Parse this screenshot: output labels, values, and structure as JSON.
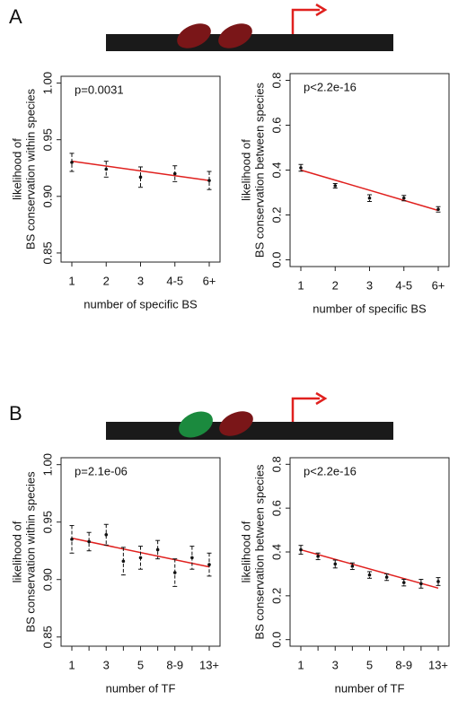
{
  "panels": [
    "A",
    "B"
  ],
  "chart_data": [
    {
      "type": "errorbar",
      "annotation": "p=0.0031",
      "y_label": [
        "likelihood of",
        "BS conservation within species"
      ],
      "x_label": "number of specific BS",
      "categories": [
        "1",
        "2",
        "3",
        "4-5",
        "6+"
      ],
      "values": [
        0.93,
        0.924,
        0.917,
        0.92,
        0.914
      ],
      "errors": [
        0.008,
        0.007,
        0.009,
        0.007,
        0.008
      ],
      "trend": {
        "color": "#e0201e",
        "values": [
          0.931,
          0.914
        ]
      },
      "ylim": [
        0.842,
        1.006
      ],
      "yticks": [
        0.85,
        {
          "value": 0.9,
          "label": "0.90"
        },
        0.95,
        {
          "value": 1.0,
          "label": "1.00"
        }
      ]
    },
    {
      "type": "errorbar",
      "annotation": "p<2.2e-16",
      "y_label": [
        "likelihood of",
        "BS conservation between species"
      ],
      "x_label": "number of specific BS",
      "categories": [
        "1",
        "2",
        "3",
        "4-5",
        "6+"
      ],
      "values": [
        0.41,
        0.33,
        0.275,
        0.275,
        0.225
      ],
      "errors": [
        0.015,
        0.01,
        0.015,
        0.012,
        0.012
      ],
      "trend": {
        "color": "#e0201e",
        "values": [
          0.4,
          0.22
        ]
      },
      "ylim": [
        -0.03,
        0.83
      ],
      "yticks": [
        {
          "value": 0,
          "label": "0.0"
        },
        0.2,
        0.4,
        0.6,
        0.8
      ]
    },
    {
      "type": "errorbar",
      "annotation": "p=2.1e-06",
      "y_label": [
        "likelihood of",
        "BS conservation within species"
      ],
      "x_label": "number of TF",
      "categories": [
        "1",
        null,
        "3",
        null,
        "5",
        null,
        "8-9",
        null,
        "13+"
      ],
      "values": [
        0.935,
        0.933,
        0.939,
        0.916,
        0.919,
        0.926,
        0.906,
        0.919,
        0.913
      ],
      "errors": [
        0.012,
        0.008,
        0.009,
        0.012,
        0.01,
        0.008,
        0.012,
        0.01,
        0.01
      ],
      "trend": {
        "color": "#e0201e",
        "values": [
          0.936,
          0.911
        ]
      },
      "ylim": [
        0.842,
        1.006
      ],
      "yticks": [
        0.85,
        {
          "value": 0.9,
          "label": "0.90"
        },
        0.95,
        {
          "value": 1.0,
          "label": "1.00"
        }
      ]
    },
    {
      "type": "errorbar",
      "annotation": "p<2.2e-16",
      "y_label": [
        "likelihood of",
        "BS conservation between species"
      ],
      "x_label": "number of TF",
      "categories": [
        "1",
        null,
        "3",
        null,
        "5",
        null,
        "8-9",
        null,
        "13+"
      ],
      "values": [
        0.41,
        0.38,
        0.345,
        0.335,
        0.295,
        0.285,
        0.26,
        0.255,
        0.265
      ],
      "errors": [
        0.02,
        0.015,
        0.018,
        0.015,
        0.015,
        0.015,
        0.015,
        0.02,
        0.018
      ],
      "trend": {
        "color": "#e0201e",
        "values": [
          0.41,
          0.235
        ]
      },
      "ylim": [
        -0.03,
        0.83
      ],
      "yticks": [
        {
          "value": 0,
          "label": "0.0"
        },
        0.2,
        0.4,
        0.6,
        0.8
      ]
    }
  ]
}
